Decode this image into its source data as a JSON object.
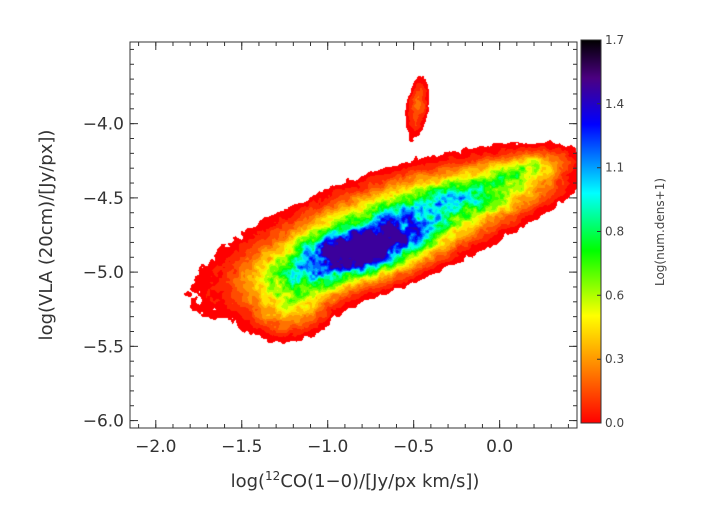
{
  "chart_data": {
    "type": "heatmap",
    "xlabel_parts": {
      "prefix": "log(",
      "sup": "12",
      "suffix": "CO(1−0)/[Jy/px km/s])"
    },
    "ylabel": "log(VLA (20cm)/[Jy/px])",
    "xlim": [
      -2.15,
      0.45
    ],
    "ylim": [
      -6.05,
      -3.45
    ],
    "x_ticks": [
      "−2.0",
      "−1.5",
      "−1.0",
      "−0.5",
      "0.0"
    ],
    "x_tick_values": [
      -2.0,
      -1.5,
      -1.0,
      -0.5,
      0.0
    ],
    "y_ticks": [
      "−6.0",
      "−5.5",
      "−5.0",
      "−4.5",
      "−4.0"
    ],
    "y_tick_values": [
      -6.0,
      -5.5,
      -5.0,
      -4.5,
      -4.0
    ],
    "colorbar": {
      "label": "Log(num.dens+1)",
      "range": [
        0.0,
        1.7
      ],
      "ticks": [
        "0.0",
        "0.3",
        "0.6",
        "0.8",
        "1.1",
        "1.4",
        "1.7"
      ],
      "tick_values": [
        0.0,
        0.283,
        0.567,
        0.85,
        1.133,
        1.417,
        1.7
      ],
      "colors": [
        "#ff0000",
        "#ff8000",
        "#ffff00",
        "#00ff00",
        "#00ffff",
        "#0000ff",
        "#4b0082",
        "#000000"
      ]
    },
    "density_components": [
      {
        "x": -0.72,
        "y": -4.73,
        "sx": 0.56,
        "sy": 0.3,
        "rho": 0.7,
        "amp": 0.55
      },
      {
        "x": -0.8,
        "y": -4.85,
        "sx": 0.24,
        "sy": 0.13,
        "rho": 0.5,
        "amp": 0.85
      },
      {
        "x": -0.2,
        "y": -4.5,
        "sx": 0.3,
        "sy": 0.12,
        "rho": 0.45,
        "amp": 0.35
      },
      {
        "x": 0.15,
        "y": -4.3,
        "sx": 0.15,
        "sy": 0.08,
        "rho": 0.4,
        "amp": 0.28
      },
      {
        "x": -1.2,
        "y": -5.2,
        "sx": 0.15,
        "sy": 0.16,
        "rho": 0.2,
        "amp": 0.3
      },
      {
        "x": -0.48,
        "y": -3.88,
        "sx": 0.05,
        "sy": 0.14,
        "rho": 0.3,
        "amp": 0.22
      }
    ],
    "peak_value": 1.5
  }
}
